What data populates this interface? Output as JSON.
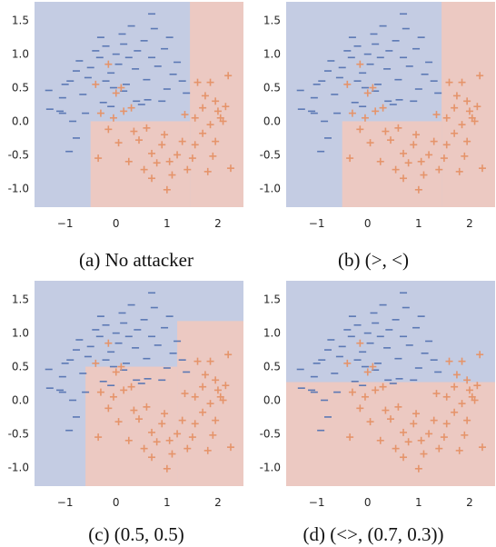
{
  "colors": {
    "neg_region": "#c4cce3",
    "pos_region": "#ecc9c2",
    "neg_marker": "#5b78b4",
    "pos_marker": "#e5946b",
    "tick_text": "#262626"
  },
  "chart_data": [
    {
      "type": "scatter",
      "caption": "(a) No attacker",
      "xlim": [
        -1.6,
        2.5
      ],
      "ylim": [
        -1.28,
        1.78
      ],
      "xticks": [
        "-1",
        "0",
        "1",
        "2"
      ],
      "yticks": [
        "1.5",
        "1.0",
        "0.5",
        "0.0",
        "-0.5",
        "-1.0"
      ],
      "grid": false,
      "legend": "none",
      "regions": [
        {
          "label": "+",
          "x0": -0.5,
          "x1": 1.45,
          "y0": -1.28,
          "y1": 0.0
        },
        {
          "label": "+",
          "x0": 1.45,
          "x1": 2.5,
          "y0": -1.28,
          "y1": 1.78
        }
      ]
    },
    {
      "type": "scatter",
      "caption": "(b) (>, <)",
      "xlim": [
        -1.6,
        2.5
      ],
      "ylim": [
        -1.28,
        1.78
      ],
      "xticks": [
        "-1",
        "0",
        "1",
        "2"
      ],
      "yticks": [
        "1.5",
        "1.0",
        "0.5",
        "0.0",
        "-0.5",
        "-1.0"
      ],
      "grid": false,
      "legend": "none",
      "regions": [
        {
          "label": "+",
          "x0": -0.5,
          "x1": 1.45,
          "y0": -1.28,
          "y1": 0.0
        },
        {
          "label": "+",
          "x0": 1.45,
          "x1": 2.5,
          "y0": -1.28,
          "y1": 1.78
        }
      ]
    },
    {
      "type": "scatter",
      "caption": "(c) (0.5, 0.5)",
      "xlim": [
        -1.6,
        2.5
      ],
      "ylim": [
        -1.28,
        1.78
      ],
      "xticks": [
        "-1",
        "0",
        "1",
        "2"
      ],
      "yticks": [
        "1.5",
        "1.0",
        "0.5",
        "0.0",
        "-0.5",
        "-1.0"
      ],
      "grid": false,
      "legend": "none",
      "regions": [
        {
          "label": "+",
          "x0": -0.6,
          "x1": 1.2,
          "y0": -1.28,
          "y1": 0.5
        },
        {
          "label": "+",
          "x0": 1.2,
          "x1": 2.5,
          "y0": -1.28,
          "y1": 1.18
        }
      ]
    },
    {
      "type": "scatter",
      "caption": "(d) (<>, (0.7, 0.3))",
      "xlim": [
        -1.6,
        2.5
      ],
      "ylim": [
        -1.28,
        1.78
      ],
      "xticks": [
        "-1",
        "0",
        "1",
        "2"
      ],
      "yticks": [
        "1.5",
        "1.0",
        "0.5",
        "0.0",
        "-0.5",
        "-1.0"
      ],
      "grid": false,
      "legend": "none",
      "regions": [
        {
          "label": "+",
          "x0": -1.6,
          "x1": 2.5,
          "y0": -1.28,
          "y1": 0.27
        }
      ]
    }
  ],
  "points_neg": [
    [
      -1.32,
      0.46
    ],
    [
      -1.3,
      0.18
    ],
    [
      -1.1,
      0.15
    ],
    [
      -1.05,
      0.35
    ],
    [
      -1.0,
      0.55
    ],
    [
      -0.9,
      0.6
    ],
    [
      -0.78,
      0.75
    ],
    [
      -0.72,
      0.9
    ],
    [
      -0.65,
      0.4
    ],
    [
      -0.55,
      0.65
    ],
    [
      -0.5,
      0.8
    ],
    [
      -0.4,
      1.05
    ],
    [
      -0.32,
      0.95
    ],
    [
      -0.3,
      1.25
    ],
    [
      -0.2,
      1.12
    ],
    [
      -0.1,
      0.72
    ],
    [
      -0.05,
      0.5
    ],
    [
      0.0,
      1.0
    ],
    [
      0.05,
      0.85
    ],
    [
      0.12,
      1.3
    ],
    [
      0.15,
      1.15
    ],
    [
      0.2,
      0.55
    ],
    [
      0.25,
      0.95
    ],
    [
      0.3,
      1.42
    ],
    [
      0.38,
      0.78
    ],
    [
      0.42,
      1.05
    ],
    [
      0.5,
      0.25
    ],
    [
      0.55,
      1.2
    ],
    [
      0.6,
      0.62
    ],
    [
      0.7,
      0.95
    ],
    [
      0.75,
      1.38
    ],
    [
      0.82,
      0.82
    ],
    [
      0.9,
      0.3
    ],
    [
      0.95,
      1.08
    ],
    [
      1.0,
      0.48
    ],
    [
      1.05,
      1.25
    ],
    [
      1.12,
      0.7
    ],
    [
      1.2,
      0.88
    ],
    [
      1.3,
      0.6
    ],
    [
      1.38,
      0.42
    ],
    [
      0.7,
      1.6
    ],
    [
      -0.92,
      -0.45
    ],
    [
      -0.78,
      -0.25
    ],
    [
      0.4,
      0.3
    ],
    [
      -0.1,
      0.22
    ],
    [
      0.15,
      0.45
    ],
    [
      -0.25,
      0.28
    ],
    [
      0.62,
      0.32
    ],
    [
      -0.6,
      0.12
    ],
    [
      -1.05,
      0.12
    ],
    [
      -0.85,
      0.0
    ],
    [
      -0.2,
      0.6
    ]
  ],
  "points_pos": [
    [
      1.6,
      0.58
    ],
    [
      1.75,
      0.38
    ],
    [
      1.85,
      0.58
    ],
    [
      1.95,
      0.3
    ],
    [
      2.05,
      0.05
    ],
    [
      2.15,
      0.22
    ],
    [
      2.2,
      0.68
    ],
    [
      1.7,
      0.2
    ],
    [
      1.85,
      -0.05
    ],
    [
      1.95,
      -0.3
    ],
    [
      2.0,
      0.15
    ],
    [
      2.1,
      0.0
    ],
    [
      1.9,
      -0.52
    ],
    [
      1.8,
      -0.75
    ],
    [
      1.7,
      -0.18
    ],
    [
      1.55,
      -0.35
    ],
    [
      1.5,
      -0.55
    ],
    [
      1.4,
      -0.72
    ],
    [
      1.3,
      -0.3
    ],
    [
      1.2,
      -0.5
    ],
    [
      1.1,
      -0.8
    ],
    [
      1.05,
      -0.6
    ],
    [
      1.0,
      -1.02
    ],
    [
      0.9,
      -0.35
    ],
    [
      0.8,
      -0.62
    ],
    [
      0.7,
      -0.48
    ],
    [
      0.6,
      -0.1
    ],
    [
      0.55,
      -0.72
    ],
    [
      0.45,
      -0.28
    ],
    [
      0.35,
      -0.15
    ],
    [
      0.25,
      -0.6
    ],
    [
      0.15,
      0.15
    ],
    [
      0.05,
      -0.32
    ],
    [
      -0.05,
      0.05
    ],
    [
      -0.15,
      -0.12
    ],
    [
      -0.35,
      -0.55
    ],
    [
      -0.3,
      0.12
    ],
    [
      0.0,
      0.42
    ],
    [
      -0.4,
      0.55
    ],
    [
      0.1,
      0.5
    ],
    [
      0.3,
      0.2
    ],
    [
      1.35,
      0.1
    ],
    [
      1.55,
      0.05
    ],
    [
      2.25,
      -0.7
    ],
    [
      0.7,
      -0.85
    ],
    [
      0.95,
      -0.2
    ],
    [
      -0.15,
      0.85
    ]
  ]
}
